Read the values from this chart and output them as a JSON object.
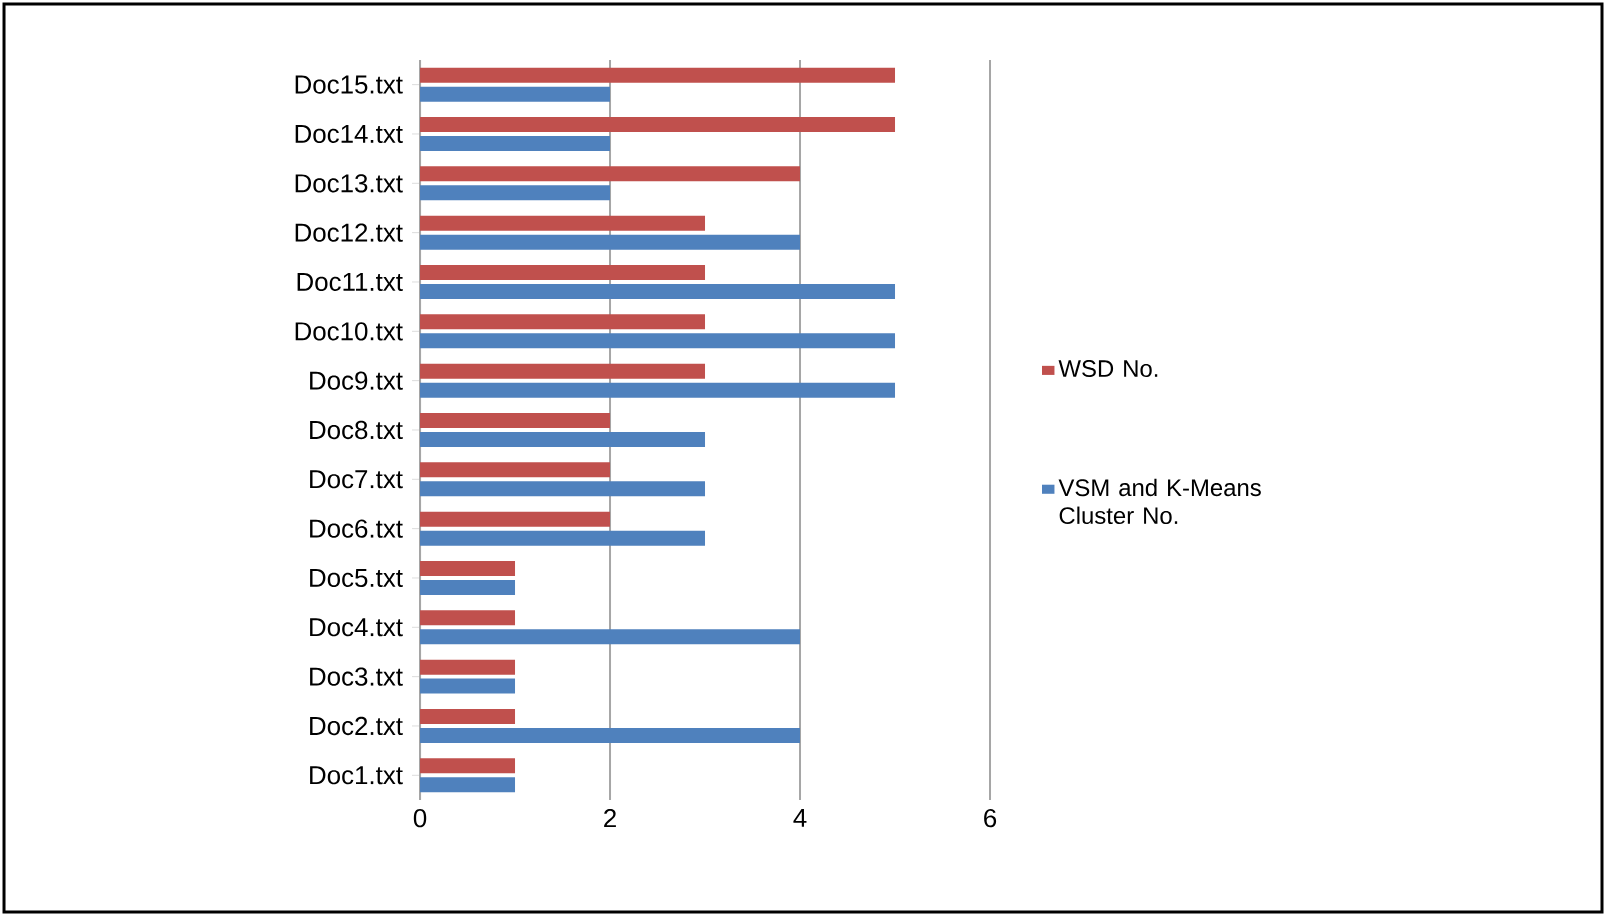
{
  "chart_data": {
    "type": "bar",
    "orientation": "horizontal",
    "categories": [
      "Doc15.txt",
      "Doc14.txt",
      "Doc13.txt",
      "Doc12.txt",
      "Doc11.txt",
      "Doc10.txt",
      "Doc9.txt",
      "Doc8.txt",
      "Doc7.txt",
      "Doc6.txt",
      "Doc5.txt",
      "Doc4.txt",
      "Doc3.txt",
      "Doc2.txt",
      "Doc1.txt"
    ],
    "series": [
      {
        "name": "VSM and K-Means Cluster No.",
        "color": "#4f81bd",
        "values": [
          2,
          2,
          2,
          4,
          5,
          5,
          5,
          3,
          3,
          3,
          1,
          4,
          1,
          4,
          1
        ]
      },
      {
        "name": "WSD No.",
        "color": "#c0504d",
        "values": [
          5,
          5,
          4,
          3,
          3,
          3,
          3,
          2,
          2,
          2,
          1,
          1,
          1,
          1,
          1
        ]
      }
    ],
    "xlim": [
      0,
      6
    ],
    "xticks": [
      0,
      2,
      4,
      6
    ],
    "grid": "x",
    "legend": "right"
  }
}
